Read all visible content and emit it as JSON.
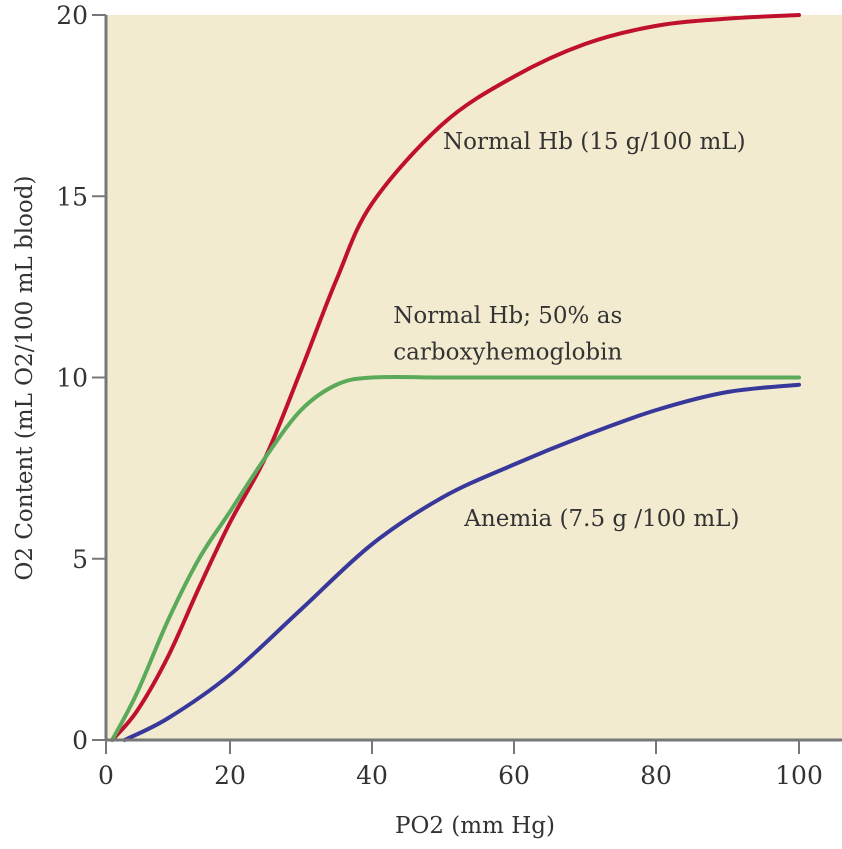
{
  "chart_data": {
    "type": "line",
    "title": "",
    "xlabel": "PO2 (mm Hg)",
    "ylabel": "O2 Content (mL O2/100 mL blood)",
    "xlim": [
      0,
      100
    ],
    "ylim": [
      0,
      20
    ],
    "xticks": [
      0,
      20,
      40,
      60,
      80,
      100
    ],
    "yticks": [
      0,
      5,
      10,
      15,
      20
    ],
    "grid": false,
    "background": "#f3ebd0",
    "series": [
      {
        "name": "Normal Hb (15 g/100 mL)",
        "color": "#c0102f",
        "x": [
          1,
          5,
          10,
          15,
          20,
          25,
          30,
          35,
          40,
          50,
          60,
          70,
          80,
          90,
          100
        ],
        "y": [
          0,
          0.8,
          2.3,
          4.2,
          6.0,
          7.8,
          10.2,
          12.7,
          14.8,
          17.0,
          18.3,
          19.2,
          19.7,
          19.9,
          20.0
        ]
      },
      {
        "name": "Normal Hb; 50% as carboxyhemoglobin",
        "color": "#5aaa5a",
        "x": [
          1,
          5,
          10,
          15,
          20,
          25,
          30,
          35,
          40,
          50,
          60,
          80,
          100
        ],
        "y": [
          0,
          1.3,
          3.3,
          5.0,
          6.3,
          7.8,
          9.1,
          9.8,
          10.0,
          10.0,
          10.0,
          10.0,
          10.0
        ]
      },
      {
        "name": "Anemia (7.5 g /100 mL)",
        "color": "#38389a",
        "x": [
          3,
          10,
          20,
          30,
          40,
          50,
          60,
          70,
          80,
          90,
          100
        ],
        "y": [
          0,
          0.6,
          1.8,
          3.6,
          5.4,
          6.7,
          7.6,
          8.4,
          9.1,
          9.6,
          9.8
        ]
      }
    ],
    "annotations": [
      {
        "text": "Normal Hb (15 g/100 mL)",
        "x": 50,
        "y": 16.3
      },
      {
        "text": "Normal Hb; 50% as",
        "x": 43,
        "y": 11.5
      },
      {
        "text": "carboxyhemoglobin",
        "x": 43,
        "y": 10.5
      },
      {
        "text": "Anemia (7.5 g /100 mL)",
        "x": 53,
        "y": 5.9
      }
    ]
  }
}
